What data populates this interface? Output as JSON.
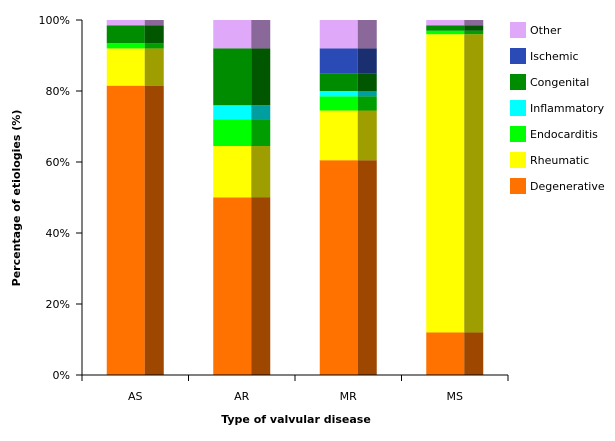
{
  "chart_data": {
    "type": "bar",
    "stacked": true,
    "percent": true,
    "title": "",
    "xlabel": "Type of valvular disease",
    "ylabel": "Percentage of etiologies (%)",
    "ylim": [
      0,
      100
    ],
    "yticks": [
      "0%",
      "20%",
      "40%",
      "60%",
      "80%",
      "100%"
    ],
    "categories": [
      "AS",
      "AR",
      "MR",
      "MS"
    ],
    "grid": false,
    "legend_position": "right",
    "series": [
      {
        "name": "Degenerative",
        "color": "#ff7200",
        "values": [
          81.5,
          50,
          60.5,
          12
        ]
      },
      {
        "name": "Rheumatic",
        "color": "#ffff00",
        "values": [
          10.5,
          14.5,
          14,
          84
        ]
      },
      {
        "name": "Endocarditis",
        "color": "#00ff00",
        "values": [
          1.5,
          7.5,
          4,
          1
        ]
      },
      {
        "name": "Inflammatory",
        "color": "#00ffff",
        "values": [
          0,
          4,
          1.5,
          0
        ]
      },
      {
        "name": "Congenital",
        "color": "#008c00",
        "values": [
          5,
          16,
          5,
          1.5
        ]
      },
      {
        "name": "Ischemic",
        "color": "#2a4bb5",
        "values": [
          0,
          0,
          7,
          0
        ]
      },
      {
        "name": "Other",
        "color": "#e0a8f8",
        "values": [
          1.5,
          8,
          8,
          1.5
        ]
      }
    ]
  }
}
